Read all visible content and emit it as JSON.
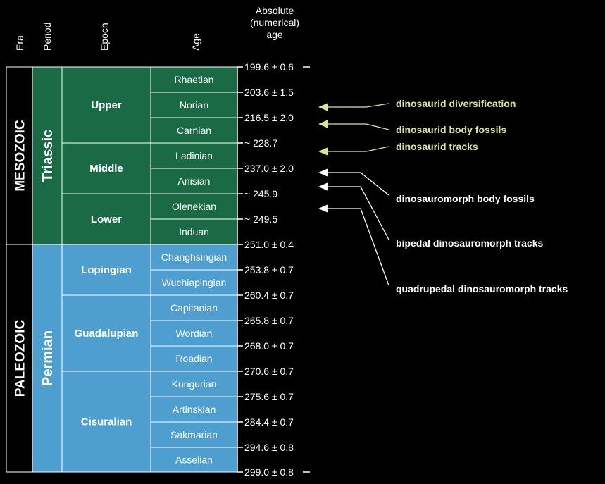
{
  "headers": {
    "era": "Era",
    "period": "Period",
    "epoch": "Epoch",
    "age": "Age",
    "absolute_line1": "Absolute",
    "absolute_line2": "(numerical)",
    "absolute_line3": "age"
  },
  "eras": [
    {
      "name": "MESOZOIC",
      "key": "mesozoic"
    },
    {
      "name": "PALEOZOIC",
      "key": "paleozoic"
    }
  ],
  "periods": [
    {
      "name": "Triassic",
      "key": "triassic"
    },
    {
      "name": "Permian",
      "key": "permian"
    }
  ],
  "epochs": [
    {
      "name": "Upper",
      "key": "upper"
    },
    {
      "name": "Middle",
      "key": "middle"
    },
    {
      "name": "Lower",
      "key": "lower"
    },
    {
      "name": "Lopingian",
      "key": "lopingian"
    },
    {
      "name": "Guadalupian",
      "key": "guadalupian"
    },
    {
      "name": "Cisuralian",
      "key": "cisuralian"
    }
  ],
  "ages": [
    {
      "name": "Rhaetian"
    },
    {
      "name": "Norian"
    },
    {
      "name": "Carnian"
    },
    {
      "name": "Ladinian"
    },
    {
      "name": "Anisian"
    },
    {
      "name": "Olenekian"
    },
    {
      "name": "Induan"
    },
    {
      "name": "Changhsingian"
    },
    {
      "name": "Wuchiapingian"
    },
    {
      "name": "Capitanian"
    },
    {
      "name": "Wordian"
    },
    {
      "name": "Roadian"
    },
    {
      "name": "Kungurian"
    },
    {
      "name": "Artinskian"
    },
    {
      "name": "Sakmarian"
    },
    {
      "name": "Asselian"
    }
  ],
  "absolute_ages": [
    "199.6 ± 0.6",
    "203.6 ± 1.5",
    "216.5 ± 2.0",
    "~ 228.7",
    "237.0 ± 2.0",
    "~ 245.9",
    "~ 249.5",
    "251.0 ± 0.4",
    "253.8 ± 0.7",
    "260.4 ± 0.7",
    "265.8 ± 0.7",
    "268.0 ± 0.7",
    "270.6 ± 0.7",
    "275.6 ± 0.7",
    "284.4 ± 0.7",
    "294.6 ± 0.8",
    "299.0 ± 0.8"
  ],
  "events": [
    {
      "label": "dinosaurid diversification",
      "group": "dinosaurid"
    },
    {
      "label": "dinosaurid body fossils",
      "group": "dinosaurid"
    },
    {
      "label": "dinosaurid tracks",
      "group": "dinosaurid"
    },
    {
      "label": "dinosauromorph body fossils",
      "group": "dinosauromorph"
    },
    {
      "label": "bipedal dinosauromorph tracks",
      "group": "dinosauromorph"
    },
    {
      "label": "quadrupedal dinosauromorph tracks",
      "group": "dinosauromorph"
    }
  ],
  "colors": {
    "mesozoic_green": "#1a6b45",
    "paleozoic_blue": "#4e9fcf",
    "grid_line": "#ffffff",
    "dinosaurid": "#dfe39a",
    "dinosauromorph": "#ffffff"
  }
}
